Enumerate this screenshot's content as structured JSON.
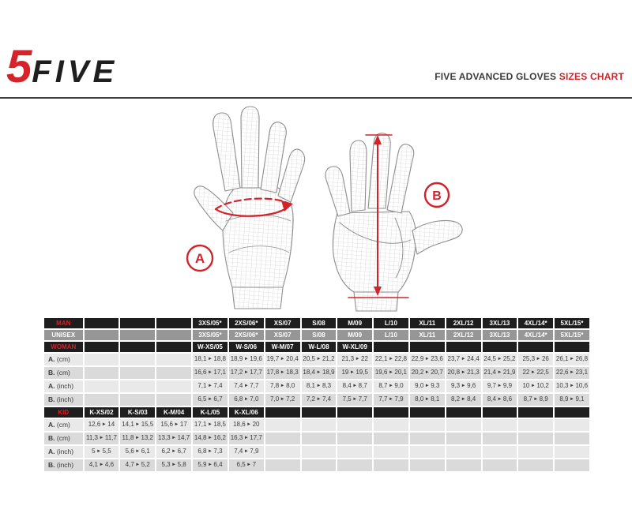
{
  "logo": {
    "number": "5",
    "word": "FIVE"
  },
  "header": {
    "title": "FIVE ADVANCED GLOVES",
    "title_accent": "SIZES CHART"
  },
  "diagram": {
    "marker_a": "A",
    "marker_b": "B",
    "marker_a_meaning": "hand circumference measurement (ellipse around palm)",
    "marker_b_meaning": "hand length measurement (vertical line wrist to fingertip)"
  },
  "colors": {
    "accent_red": "#d2232a",
    "header_row_black": "#1e1e1e",
    "unisex_row_gray": "#969696",
    "data_row_light": "#e9e9e9",
    "data_row_mid": "#dadada"
  },
  "size_table": {
    "data_columns": 14,
    "rows": [
      {
        "label": "MAN",
        "style": "dark",
        "cells": [
          "",
          "",
          "",
          "3XS/05*",
          "2XS/06*",
          "XS/07",
          "S/08",
          "M/09",
          "L/10",
          "XL/11",
          "2XL/12",
          "3XL/13",
          "4XL/14*",
          "5XL/15*"
        ]
      },
      {
        "label": "UNISEX",
        "style": "gray",
        "cells": [
          "",
          "",
          "",
          "3XS/05*",
          "2XS/06*",
          "XS/07",
          "S/08",
          "M/09",
          "L/10",
          "XL/11",
          "2XL/12",
          "3XL/13",
          "4XL/14*",
          "5XL/15*"
        ]
      },
      {
        "label": "WOMAN",
        "style": "dark",
        "cells": [
          "",
          "",
          "",
          "W-XS/05",
          "W-S/06",
          "W-M/07",
          "W-L/08",
          "W-XL/09",
          "",
          "",
          "",
          "",
          "",
          ""
        ]
      },
      {
        "label": "A.",
        "label_rest": "(cm)",
        "style": "light",
        "cells": [
          "",
          "",
          "",
          "18,1►18,8",
          "18,9►19,6",
          "19,7►20,4",
          "20,5►21,2",
          "21,3►22",
          "22,1►22,8",
          "22,9►23,6",
          "23,7►24,4",
          "24,5►25,2",
          "25,3►26",
          "26,1►26,8"
        ]
      },
      {
        "label": "B.",
        "label_rest": "(cm)",
        "style": "mid",
        "cells": [
          "",
          "",
          "",
          "16,6►17,1",
          "17,2►17,7",
          "17,8►18,3",
          "18,4►18,9",
          "19►19,5",
          "19,6►20,1",
          "20,2►20,7",
          "20,8►21,3",
          "21,4►21,9",
          "22►22,5",
          "22,6►23,1"
        ]
      },
      {
        "label": "A.",
        "label_rest": "(inch)",
        "style": "light",
        "cells": [
          "",
          "",
          "",
          "7,1►7,4",
          "7,4►7,7",
          "7,8►8,0",
          "8,1►8,3",
          "8,4►8,7",
          "8,7►9,0",
          "9,0►9,3",
          "9,3►9,6",
          "9,7►9,9",
          "10►10,2",
          "10,3►10,6"
        ]
      },
      {
        "label": "B.",
        "label_rest": "(inch)",
        "style": "mid",
        "cells": [
          "",
          "",
          "",
          "6,5►6,7",
          "6,8►7,0",
          "7,0►7,2",
          "7,2►7,4",
          "7,5►7,7",
          "7,7►7,9",
          "8,0►8,1",
          "8,2►8,4",
          "8,4►8,6",
          "8,7►8,9",
          "8,9►9,1"
        ]
      },
      {
        "label": "KID",
        "style": "dark",
        "cells": [
          "K-XS/02",
          "K-S/03",
          "K-M/04",
          "K-L/05",
          "K-XL/06",
          "",
          "",
          "",
          "",
          "",
          "",
          "",
          "",
          ""
        ]
      },
      {
        "label": "A.",
        "label_rest": "(cm)",
        "style": "light",
        "cells": [
          "12,6►14",
          "14,1►15,5",
          "15,6►17",
          "17,1►18,5",
          "18,6►20",
          "",
          "",
          "",
          "",
          "",
          "",
          "",
          "",
          ""
        ]
      },
      {
        "label": "B.",
        "label_rest": "(cm)",
        "style": "mid",
        "cells": [
          "11,3►11,7",
          "11,8►13,2",
          "13,3►14,7",
          "14,8►16,2",
          "16,3►17,7",
          "",
          "",
          "",
          "",
          "",
          "",
          "",
          "",
          ""
        ]
      },
      {
        "label": "A.",
        "label_rest": "(inch)",
        "style": "light",
        "cells": [
          "5►5,5",
          "5,6►6,1",
          "6,2►6,7",
          "6,8►7,3",
          "7,4►7,9",
          "",
          "",
          "",
          "",
          "",
          "",
          "",
          "",
          ""
        ]
      },
      {
        "label": "B.",
        "label_rest": "(inch)",
        "style": "mid",
        "cells": [
          "4,1►4,6",
          "4,7►5,2",
          "5,3►5,8",
          "5,9►6,4",
          "6,5►7",
          "",
          "",
          "",
          "",
          "",
          "",
          "",
          "",
          ""
        ]
      }
    ]
  }
}
